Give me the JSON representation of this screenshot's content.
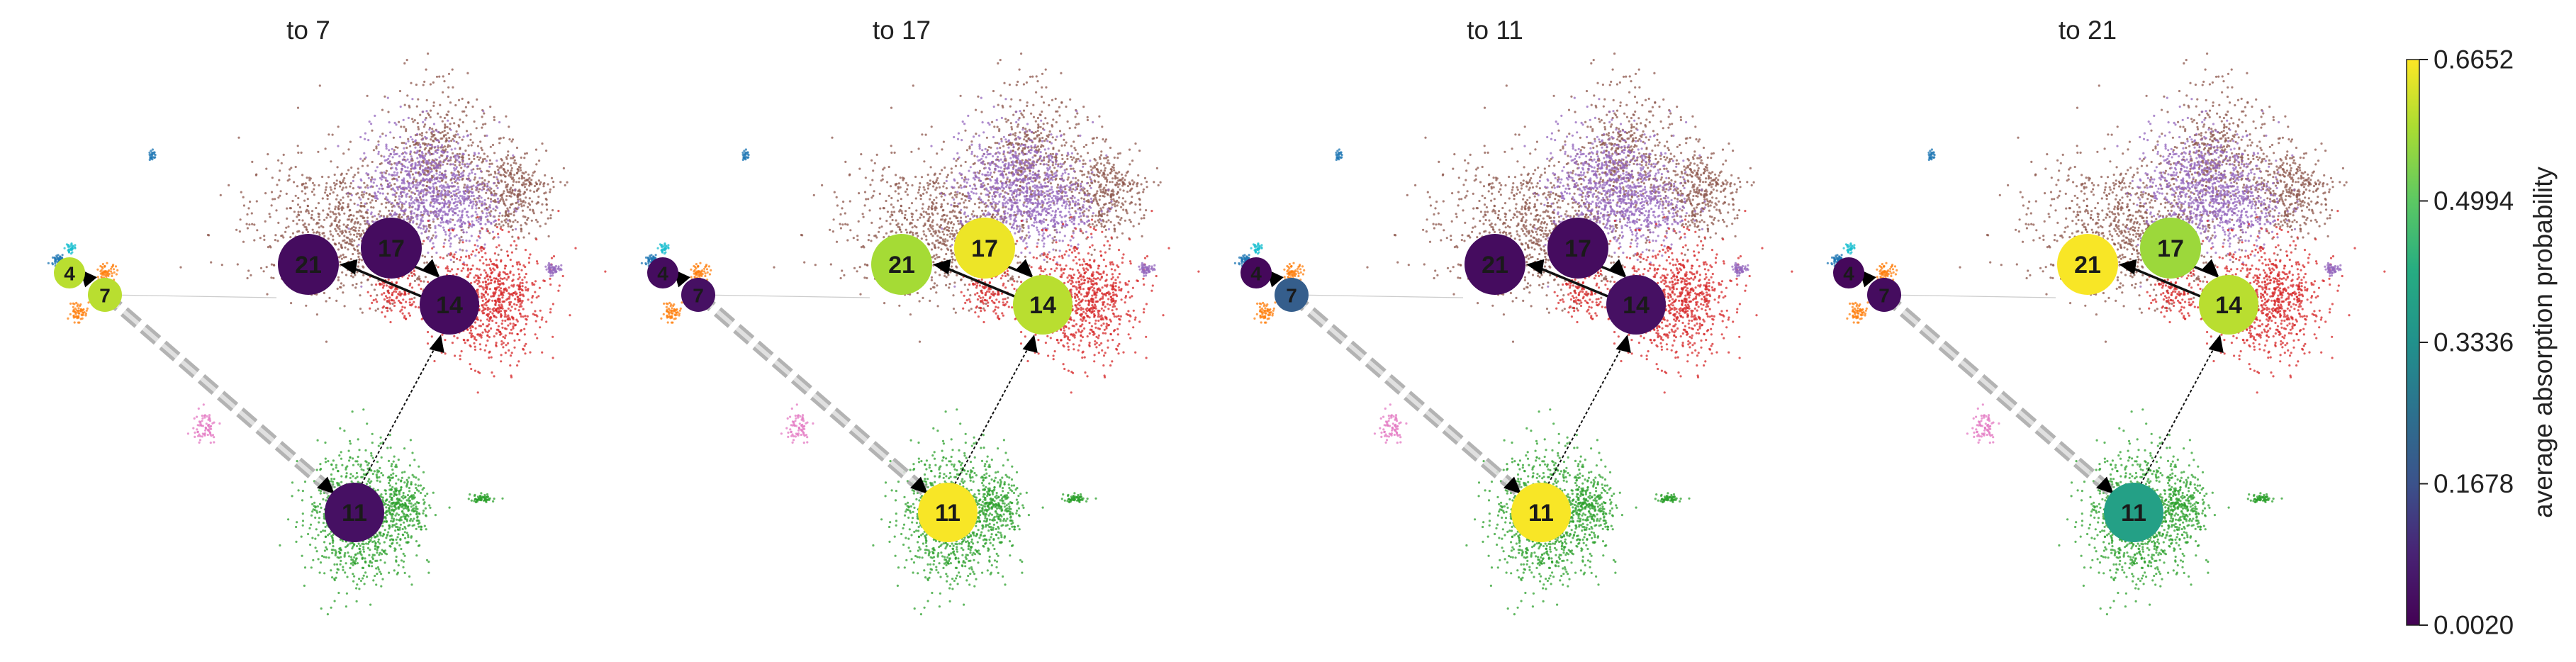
{
  "chart_data": {
    "type": "scatter",
    "description_free": true,
    "panels": [
      {
        "title": "to 7",
        "node_values": {
          "4": 0.6,
          "7": 0.6,
          "11": 0.04,
          "14": 0.03,
          "17": 0.03,
          "21": 0.03
        }
      },
      {
        "title": "to 17",
        "node_values": {
          "4": 0.03,
          "7": 0.04,
          "11": 0.66,
          "14": 0.6,
          "17": 0.65,
          "21": 0.58
        }
      },
      {
        "title": "to 11",
        "node_values": {
          "4": 0.02,
          "7": 0.2,
          "11": 0.66,
          "14": 0.04,
          "17": 0.03,
          "21": 0.03
        }
      },
      {
        "title": "to 21",
        "node_values": {
          "4": 0.02,
          "7": 0.03,
          "11": 0.38,
          "14": 0.6,
          "17": 0.57,
          "21": 0.66
        }
      }
    ],
    "node_labels": [
      "4",
      "7",
      "11",
      "14",
      "17",
      "21"
    ],
    "colorbar": {
      "label": "average absorption probability",
      "colormap": "viridis",
      "min": 0.002,
      "max": 0.6652,
      "ticks": [
        "0.0020",
        "0.1678",
        "0.3336",
        "0.4994",
        "0.6652"
      ]
    },
    "cluster_colors": {
      "green": "#2ca02c",
      "brown": "#8c564b",
      "red": "#d62728",
      "purple": "#9467bd",
      "orange": "#ff7f0e",
      "blue": "#1f77b4",
      "cyan": "#17becf",
      "pink": "#e377c2"
    }
  }
}
